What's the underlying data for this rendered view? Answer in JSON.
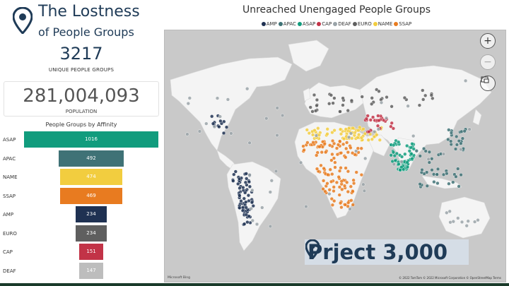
{
  "header": {
    "title_line1": "The Lostness",
    "title_line2": "of People Groups"
  },
  "kpi": {
    "unique_groups": "3217",
    "unique_groups_label": "UNIQUE PEOPLE GROUPS",
    "population": "281,004,093",
    "population_label": "POPULATION"
  },
  "affinity_chart": {
    "title": "People Groups by Affinity"
  },
  "chart_data": {
    "type": "bar",
    "orientation": "horizontal-funnel",
    "title": "People Groups by Affinity",
    "categories": [
      "ASAP",
      "APAC",
      "NAME",
      "SSAP",
      "AMP",
      "EURO",
      "CAP",
      "DEAF"
    ],
    "values": [
      1016,
      492,
      474,
      469,
      234,
      234,
      151,
      147
    ],
    "colors": [
      "#119c7d",
      "#3f7276",
      "#f2cd3f",
      "#e87b20",
      "#1f3152",
      "#5f5f5f",
      "#c23347",
      "#bdbdbd"
    ]
  },
  "map": {
    "title": "Unreached Unengaged People Groups",
    "legend": [
      {
        "label": "AMP",
        "color": "#1f3152"
      },
      {
        "label": "APAC",
        "color": "#3f7276"
      },
      {
        "label": "ASAP",
        "color": "#119c7d"
      },
      {
        "label": "CAP",
        "color": "#c23347"
      },
      {
        "label": "DEAF",
        "color": "#9aa3a8"
      },
      {
        "label": "EURO",
        "color": "#5f5f5f"
      },
      {
        "label": "NAME",
        "color": "#f2cd3f"
      },
      {
        "label": "SSAP",
        "color": "#e87b20"
      }
    ],
    "zoom_in": "+",
    "zoom_out": "−",
    "brand_text_pre": "Pr",
    "brand_text_post": "ject 3,000",
    "attribution": "© 2022 TomTom  © 2022 Microsoft Corporation  © OpenStreetMap  Terms",
    "bing": "Microsoft Bing"
  }
}
